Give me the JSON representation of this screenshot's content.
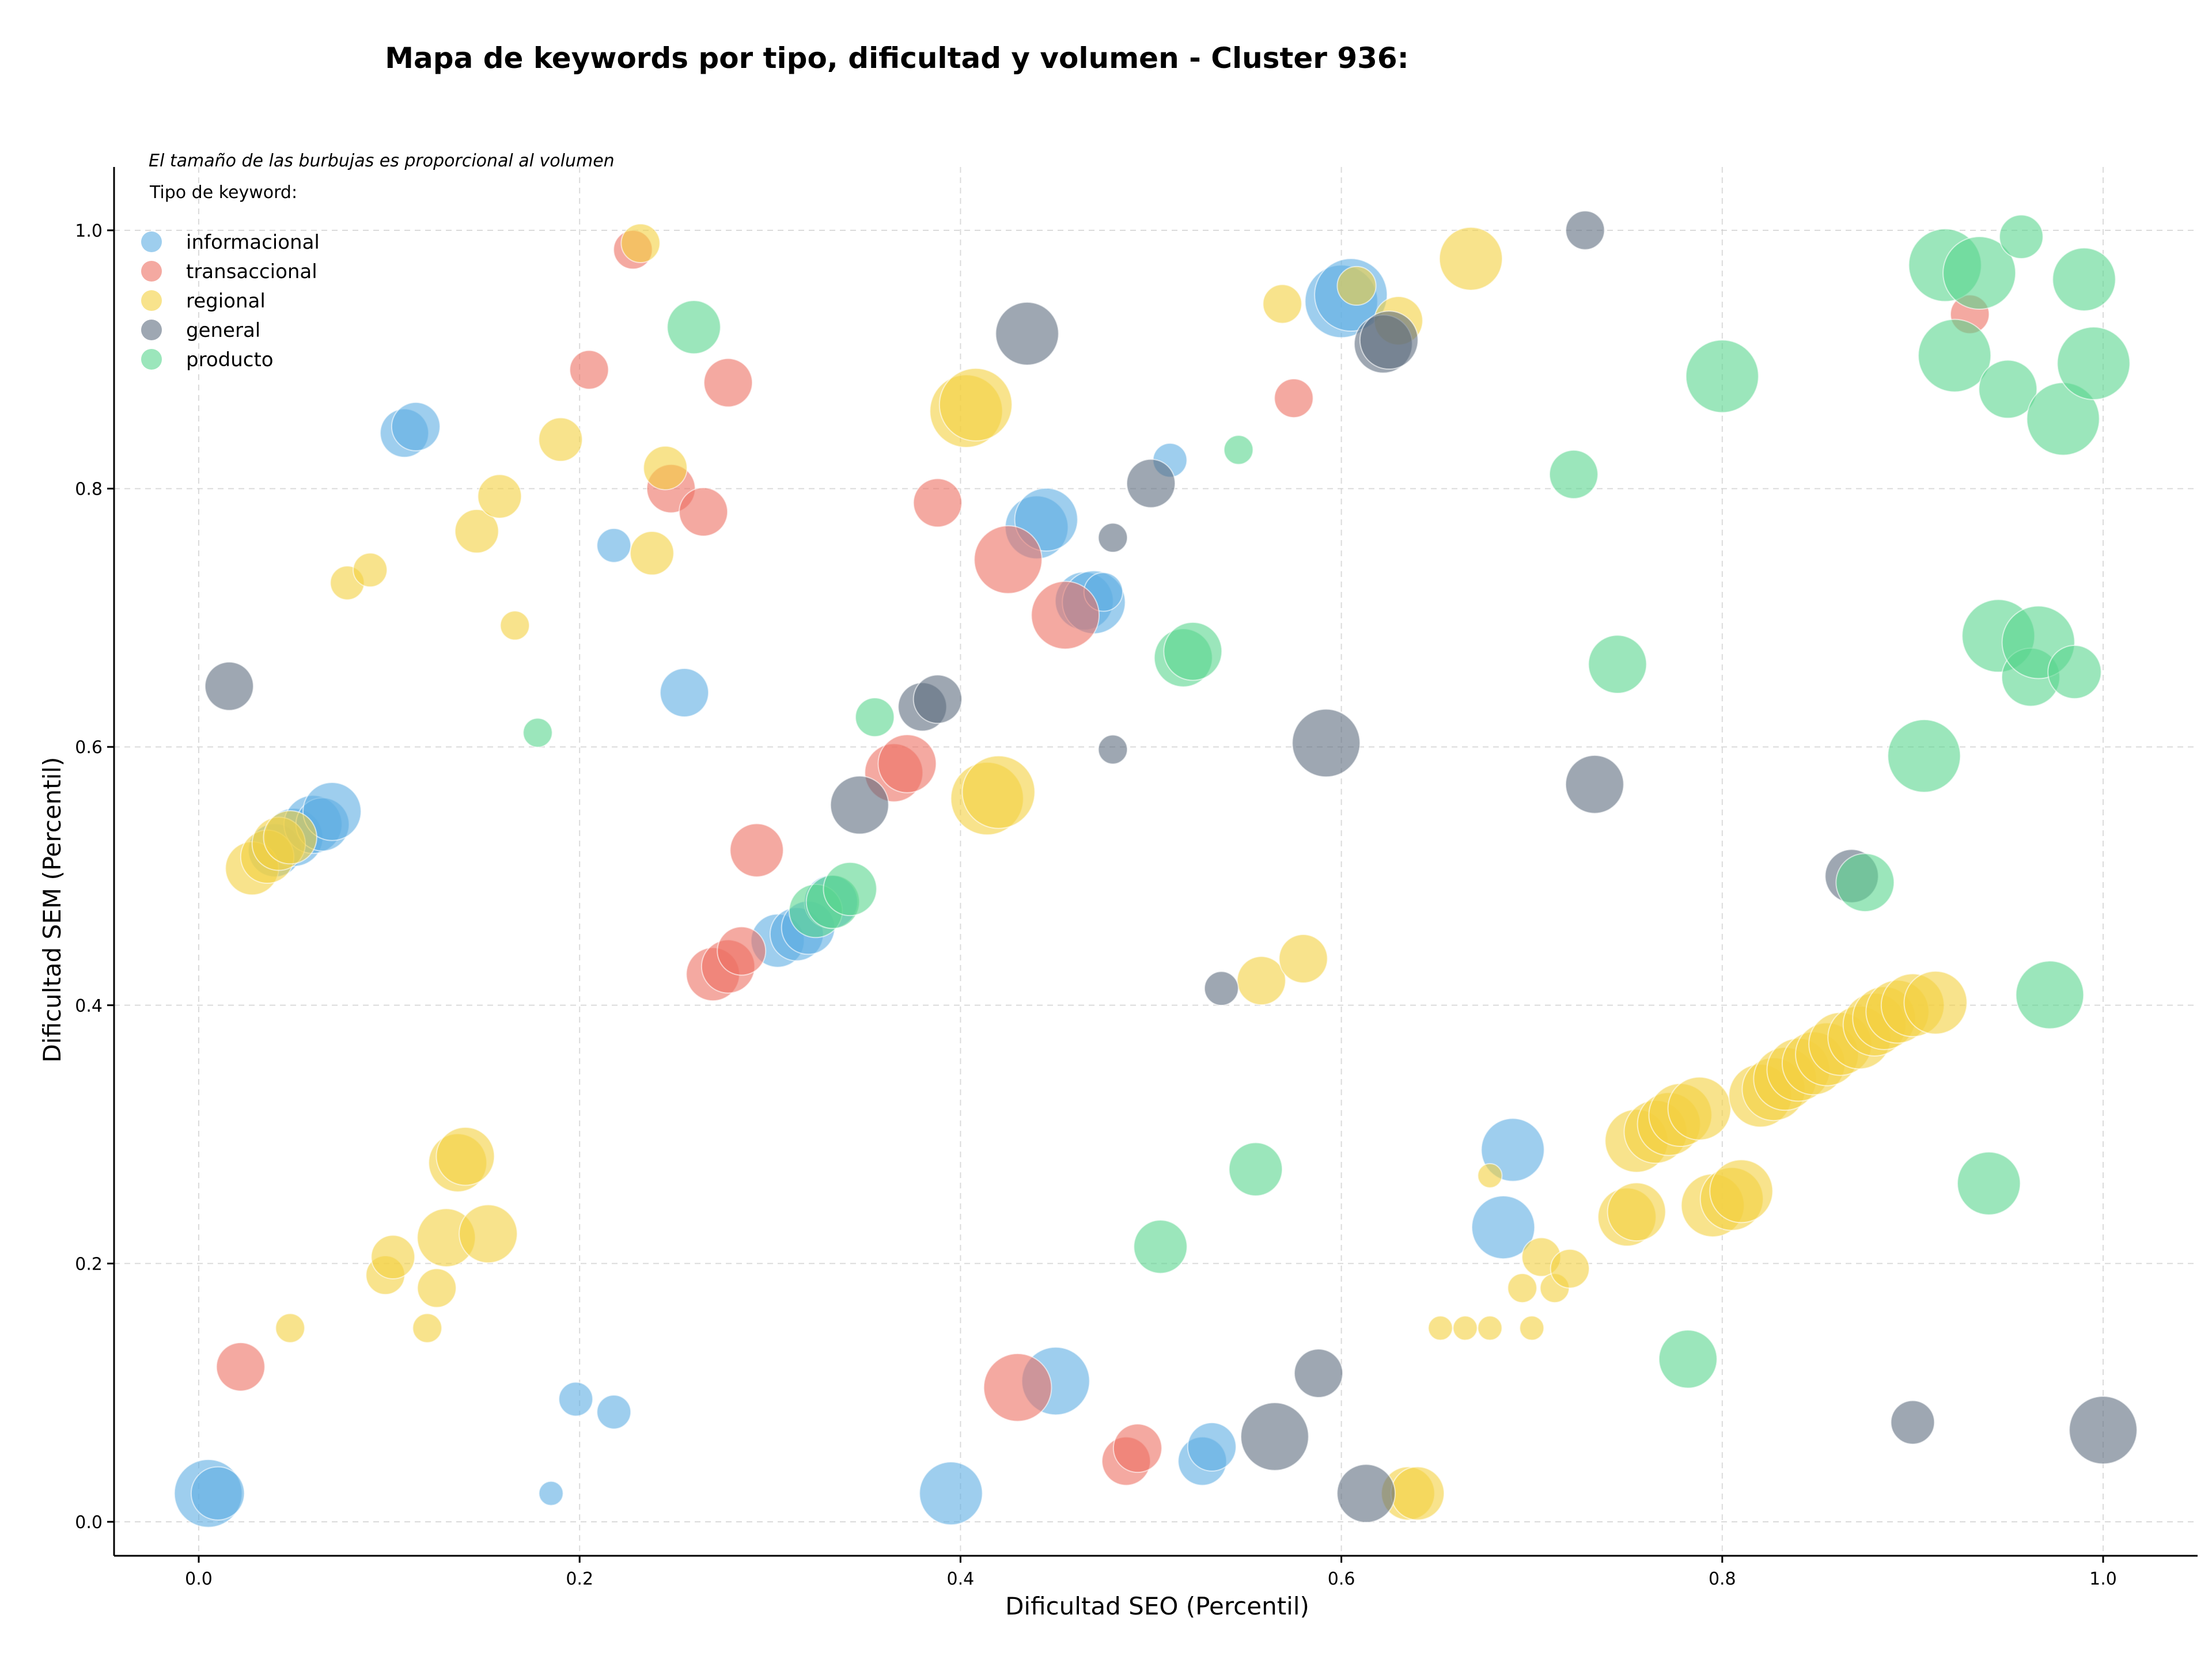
{
  "chart_data": {
    "type": "scatter",
    "title": "Mapa de keywords por tipo, dificultad y volumen - Cluster 936:",
    "xlabel": "Dificultad SEO (Percentil)",
    "ylabel": "Dificultad SEM (Percentil)",
    "xlim": [
      -0.045,
      1.05
    ],
    "ylim": [
      -0.027,
      1.05
    ],
    "xticks": [
      "0.0",
      "0.2",
      "0.4",
      "0.6",
      "0.8",
      "1.0"
    ],
    "yticks": [
      "0.0",
      "0.2",
      "0.4",
      "0.6",
      "0.8",
      "1.0"
    ],
    "grid": true,
    "size_note": "El tamaño de las burbujas es proporcional al volumen",
    "legend_title": "Tipo de keyword:",
    "legend_position": "top-left",
    "series": [
      {
        "name": "informacional",
        "color": "#5DADE2",
        "points": [
          [
            0.005,
            0.022,
            14
          ],
          [
            0.01,
            0.022,
            11
          ],
          [
            0.04,
            0.52,
            11
          ],
          [
            0.05,
            0.53,
            12
          ],
          [
            0.06,
            0.54,
            12
          ],
          [
            0.065,
            0.54,
            11
          ],
          [
            0.07,
            0.55,
            12
          ],
          [
            0.108,
            0.843,
            10
          ],
          [
            0.114,
            0.848,
            10
          ],
          [
            0.185,
            0.022,
            5
          ],
          [
            0.198,
            0.095,
            7
          ],
          [
            0.218,
            0.085,
            7
          ],
          [
            0.218,
            0.756,
            7
          ],
          [
            0.255,
            0.642,
            10
          ],
          [
            0.304,
            0.45,
            11
          ],
          [
            0.314,
            0.455,
            11
          ],
          [
            0.32,
            0.46,
            11
          ],
          [
            0.332,
            0.48,
            11
          ],
          [
            0.395,
            0.022,
            13
          ],
          [
            0.44,
            0.77,
            13
          ],
          [
            0.445,
            0.776,
            13
          ],
          [
            0.45,
            0.109,
            14
          ],
          [
            0.465,
            0.713,
            12
          ],
          [
            0.47,
            0.712,
            13
          ],
          [
            0.475,
            0.72,
            8
          ],
          [
            0.51,
            0.822,
            7
          ],
          [
            0.527,
            0.047,
            10
          ],
          [
            0.532,
            0.058,
            10
          ],
          [
            0.6,
            0.945,
            15
          ],
          [
            0.605,
            0.95,
            15
          ],
          [
            0.685,
            0.228,
            13
          ],
          [
            0.69,
            0.288,
            13
          ]
        ]
      },
      {
        "name": "transaccional",
        "color": "#EC7063",
        "points": [
          [
            0.022,
            0.12,
            10
          ],
          [
            0.205,
            0.892,
            8
          ],
          [
            0.228,
            0.985,
            8
          ],
          [
            0.248,
            0.8,
            10
          ],
          [
            0.265,
            0.782,
            10
          ],
          [
            0.27,
            0.424,
            11
          ],
          [
            0.278,
            0.43,
            11
          ],
          [
            0.278,
            0.882,
            10
          ],
          [
            0.285,
            0.442,
            10
          ],
          [
            0.293,
            0.52,
            11
          ],
          [
            0.365,
            0.58,
            12
          ],
          [
            0.372,
            0.587,
            12
          ],
          [
            0.388,
            0.789,
            10
          ],
          [
            0.425,
            0.745,
            14
          ],
          [
            0.43,
            0.104,
            14
          ],
          [
            0.455,
            0.702,
            14
          ],
          [
            0.487,
            0.047,
            10
          ],
          [
            0.493,
            0.057,
            10
          ],
          [
            0.575,
            0.87,
            8
          ],
          [
            0.93,
            0.935,
            8
          ]
        ]
      },
      {
        "name": "regional",
        "color": "#F4D03F",
        "points": [
          [
            0.028,
            0.506,
            11
          ],
          [
            0.036,
            0.515,
            11
          ],
          [
            0.042,
            0.525,
            11
          ],
          [
            0.048,
            0.53,
            11
          ],
          [
            0.048,
            0.15,
            6
          ],
          [
            0.078,
            0.727,
            7
          ],
          [
            0.09,
            0.737,
            7
          ],
          [
            0.098,
            0.191,
            8
          ],
          [
            0.102,
            0.205,
            9
          ],
          [
            0.12,
            0.15,
            6
          ],
          [
            0.125,
            0.181,
            8
          ],
          [
            0.13,
            0.22,
            12
          ],
          [
            0.136,
            0.278,
            12
          ],
          [
            0.14,
            0.283,
            12
          ],
          [
            0.152,
            0.223,
            12
          ],
          [
            0.146,
            0.767,
            9
          ],
          [
            0.158,
            0.794,
            9
          ],
          [
            0.166,
            0.694,
            6
          ],
          [
            0.19,
            0.838,
            9
          ],
          [
            0.232,
            0.99,
            8
          ],
          [
            0.238,
            0.75,
            9
          ],
          [
            0.245,
            0.816,
            9
          ],
          [
            0.403,
            0.86,
            15
          ],
          [
            0.408,
            0.865,
            15
          ],
          [
            0.414,
            0.56,
            15
          ],
          [
            0.42,
            0.565,
            15
          ],
          [
            0.558,
            0.419,
            10
          ],
          [
            0.58,
            0.436,
            10
          ],
          [
            0.569,
            0.943,
            8
          ],
          [
            0.608,
            0.957,
            8
          ],
          [
            0.63,
            0.93,
            10
          ],
          [
            0.635,
            0.022,
            11
          ],
          [
            0.64,
            0.022,
            11
          ],
          [
            0.652,
            0.15,
            5
          ],
          [
            0.665,
            0.15,
            5
          ],
          [
            0.668,
            0.978,
            13
          ],
          [
            0.678,
            0.15,
            5
          ],
          [
            0.7,
            0.15,
            5
          ],
          [
            0.678,
            0.268,
            5
          ],
          [
            0.695,
            0.181,
            6
          ],
          [
            0.705,
            0.205,
            8
          ],
          [
            0.712,
            0.181,
            6
          ],
          [
            0.72,
            0.196,
            8
          ],
          [
            0.75,
            0.236,
            12
          ],
          [
            0.755,
            0.24,
            12
          ],
          [
            0.755,
            0.295,
            13
          ],
          [
            0.765,
            0.302,
            13
          ],
          [
            0.772,
            0.308,
            13
          ],
          [
            0.778,
            0.315,
            13
          ],
          [
            0.788,
            0.32,
            13
          ],
          [
            0.795,
            0.245,
            13
          ],
          [
            0.805,
            0.25,
            13
          ],
          [
            0.81,
            0.256,
            13
          ],
          [
            0.82,
            0.33,
            13
          ],
          [
            0.827,
            0.335,
            13
          ],
          [
            0.833,
            0.343,
            13
          ],
          [
            0.84,
            0.35,
            13
          ],
          [
            0.848,
            0.355,
            13
          ],
          [
            0.855,
            0.362,
            13
          ],
          [
            0.862,
            0.37,
            13
          ],
          [
            0.872,
            0.375,
            13
          ],
          [
            0.88,
            0.385,
            13
          ],
          [
            0.885,
            0.39,
            13
          ],
          [
            0.892,
            0.395,
            13
          ],
          [
            0.9,
            0.4,
            13
          ],
          [
            0.912,
            0.402,
            13
          ]
        ]
      },
      {
        "name": "general",
        "color": "#5D6D7E",
        "points": [
          [
            0.016,
            0.647,
            10
          ],
          [
            0.347,
            0.555,
            12
          ],
          [
            0.38,
            0.631,
            10
          ],
          [
            0.388,
            0.637,
            10
          ],
          [
            0.435,
            0.92,
            13
          ],
          [
            0.48,
            0.762,
            6
          ],
          [
            0.48,
            0.598,
            6
          ],
          [
            0.5,
            0.804,
            10
          ],
          [
            0.537,
            0.413,
            7
          ],
          [
            0.565,
            0.066,
            14
          ],
          [
            0.588,
            0.115,
            10
          ],
          [
            0.592,
            0.603,
            14
          ],
          [
            0.613,
            0.022,
            12
          ],
          [
            0.622,
            0.912,
            12
          ],
          [
            0.625,
            0.915,
            12
          ],
          [
            0.728,
            1.0,
            8
          ],
          [
            0.733,
            0.571,
            12
          ],
          [
            0.868,
            0.5,
            11
          ],
          [
            0.9,
            0.077,
            9
          ],
          [
            1.0,
            0.071,
            14
          ]
        ]
      },
      {
        "name": "producto",
        "color": "#58D68D",
        "points": [
          [
            0.178,
            0.611,
            6
          ],
          [
            0.26,
            0.925,
            11
          ],
          [
            0.324,
            0.473,
            11
          ],
          [
            0.333,
            0.48,
            11
          ],
          [
            0.342,
            0.49,
            11
          ],
          [
            0.355,
            0.623,
            8
          ],
          [
            0.505,
            0.213,
            11
          ],
          [
            0.517,
            0.669,
            12
          ],
          [
            0.522,
            0.674,
            12
          ],
          [
            0.546,
            0.83,
            6
          ],
          [
            0.555,
            0.273,
            11
          ],
          [
            0.722,
            0.811,
            10
          ],
          [
            0.745,
            0.664,
            12
          ],
          [
            0.782,
            0.126,
            12
          ],
          [
            0.8,
            0.887,
            15
          ],
          [
            0.875,
            0.495,
            12
          ],
          [
            0.906,
            0.593,
            15
          ],
          [
            0.917,
            0.973,
            15
          ],
          [
            0.922,
            0.903,
            15
          ],
          [
            0.935,
            0.967,
            15
          ],
          [
            0.94,
            0.262,
            13
          ],
          [
            0.945,
            0.686,
            15
          ],
          [
            0.95,
            0.877,
            12
          ],
          [
            0.957,
            0.995,
            9
          ],
          [
            0.962,
            0.654,
            12
          ],
          [
            0.966,
            0.681,
            15
          ],
          [
            0.972,
            0.408,
            14
          ],
          [
            0.979,
            0.854,
            15
          ],
          [
            0.985,
            0.658,
            11
          ],
          [
            0.99,
            0.962,
            13
          ],
          [
            0.995,
            0.897,
            15
          ]
        ]
      }
    ]
  }
}
